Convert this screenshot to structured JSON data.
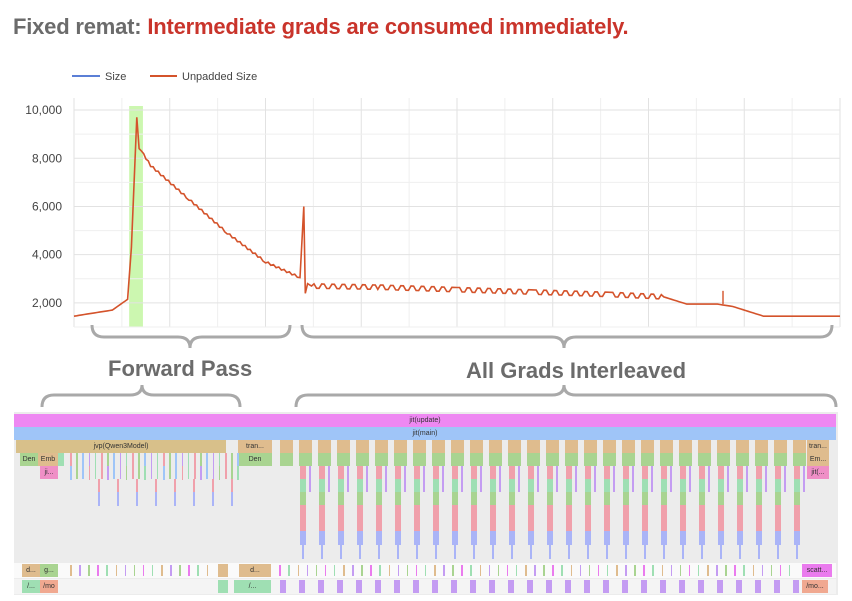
{
  "title": {
    "lead": "Fixed remat:",
    "rest": "Intermediate grads are consumed immediately."
  },
  "annotations": {
    "forward_pass": "Forward Pass",
    "all_grads": "All Grads Interleaved"
  },
  "chart_data": {
    "type": "line",
    "title": "",
    "xlabel": "",
    "ylabel": "",
    "ylim": [
      1000,
      10500
    ],
    "yticks": [
      "2,000",
      "4,000",
      "6,000",
      "8,000",
      "10,000"
    ],
    "grid": true,
    "legend_position": "top-left",
    "legend": [
      {
        "name": "Size",
        "color": "#5b7fd6"
      },
      {
        "name": "Unpadded Size",
        "color": "#d4532b"
      }
    ],
    "highlight_region": {
      "x_start": 0.072,
      "x_end": 0.09,
      "color": "#ccf7b0"
    },
    "series": [
      {
        "name": "Unpadded Size",
        "x": [
          0,
          0.05,
          0.07,
          0.075,
          0.082,
          0.085,
          0.088,
          0.1,
          0.15,
          0.2,
          0.25,
          0.295,
          0.3,
          0.302,
          0.305,
          0.31,
          0.4,
          0.5,
          0.6,
          0.7,
          0.77,
          0.8,
          0.82,
          0.84,
          0.86,
          0.9,
          1.0
        ],
        "values": [
          1450,
          1700,
          2150,
          4300,
          9700,
          8400,
          8300,
          7700,
          6300,
          4900,
          3700,
          3050,
          6000,
          2400,
          2800,
          2700,
          2650,
          2550,
          2450,
          2350,
          2250,
          1950,
          1950,
          1950,
          1850,
          1450,
          1450
        ]
      },
      {
        "name": "Size",
        "x": [
          0,
          1.0
        ],
        "values": [
          1450,
          1450
        ]
      }
    ]
  },
  "trace": {
    "rows": {
      "jit_update": "jit(update)",
      "jit_main": "jit(main)",
      "jvp": "jvp(Qwen3Model)",
      "tran_left": "tran...",
      "den_left": "Den",
      "emb_left": "Emb",
      "ji_left": "ji...",
      "den_mid": "Den",
      "tran_right": "tran...",
      "em_right": "Em...",
      "jit_right": "jit(...",
      "d1": "d...",
      "g1": "g...",
      "l1": "/...",
      "mo1": "/mo",
      "d2": "d...",
      "l2": "/...",
      "scatt": "scatt...",
      "mo2": "/mo..."
    },
    "colors": {
      "update": "#ee88f2",
      "main": "#9fc5f8",
      "jvp": "#d8c08a",
      "tran": "#dfbc8e",
      "green": "#a9d491",
      "pink": "#f0a0ab",
      "blue": "#aab4f7",
      "mint": "#9fdfb3",
      "purple": "#c49cf2",
      "magenta_stub": "#ea7bee",
      "salmon": "#f0a890"
    }
  }
}
